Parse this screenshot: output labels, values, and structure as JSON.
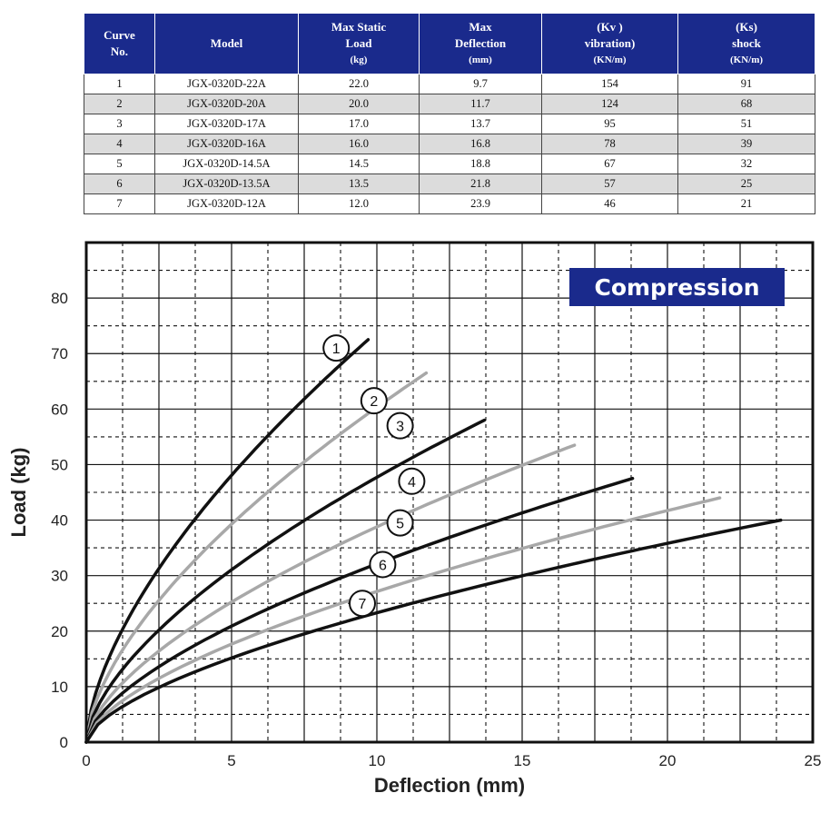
{
  "table": {
    "headers": [
      {
        "line1": "Curve",
        "line2": "No.",
        "unit": ""
      },
      {
        "line1": "Model",
        "line2": "",
        "unit": ""
      },
      {
        "line1": "Max Static",
        "line2": "Load",
        "unit": "(kg)"
      },
      {
        "line1": "Max",
        "line2": "Deflection",
        "unit": "(mm)"
      },
      {
        "line1": "(Kv )",
        "line2": "vibration)",
        "unit": "(KN/m)"
      },
      {
        "line1": "(Ks)",
        "line2": "shock",
        "unit": "(KN/m)"
      }
    ],
    "rows": [
      [
        "1",
        "JGX-0320D-22A",
        "22.0",
        "9.7",
        "154",
        "91"
      ],
      [
        "2",
        "JGX-0320D-20A",
        "20.0",
        "11.7",
        "124",
        "68"
      ],
      [
        "3",
        "JGX-0320D-17A",
        "17.0",
        "13.7",
        "95",
        "51"
      ],
      [
        "4",
        "JGX-0320D-16A",
        "16.0",
        "16.8",
        "78",
        "39"
      ],
      [
        "5",
        "JGX-0320D-14.5A",
        "14.5",
        "18.8",
        "67",
        "32"
      ],
      [
        "6",
        "JGX-0320D-13.5A",
        "13.5",
        "21.8",
        "57",
        "25"
      ],
      [
        "7",
        "JGX-0320D-12A",
        "12.0",
        "23.9",
        "46",
        "21"
      ]
    ]
  },
  "chart_data": {
    "type": "line",
    "badge": "Compression",
    "xlabel": "Deflection (mm)",
    "ylabel": "Load (kg)",
    "xlim": [
      0,
      25
    ],
    "ylim": [
      0,
      90
    ],
    "xticks": [
      0,
      5,
      10,
      15,
      20,
      25
    ],
    "yticks": [
      0,
      10,
      20,
      30,
      40,
      50,
      60,
      70,
      80
    ],
    "grid": true,
    "colors": {
      "dark": "#111111",
      "light": "#a8a8a8",
      "badge": "#1a2a8c"
    },
    "series": [
      {
        "name": "1",
        "color": "dark",
        "max_x": 9.7,
        "max_y": 72.5,
        "label_at": [
          8.6,
          71.0
        ]
      },
      {
        "name": "2",
        "color": "light",
        "max_x": 11.7,
        "max_y": 66.5,
        "label_at": [
          9.9,
          61.5
        ]
      },
      {
        "name": "3",
        "color": "dark",
        "max_x": 13.7,
        "max_y": 58.0,
        "label_at": [
          10.8,
          57.0
        ]
      },
      {
        "name": "4",
        "color": "light",
        "max_x": 16.8,
        "max_y": 53.5,
        "label_at": [
          11.2,
          47.0
        ]
      },
      {
        "name": "5",
        "color": "dark",
        "max_x": 18.8,
        "max_y": 47.5,
        "label_at": [
          10.8,
          39.5
        ]
      },
      {
        "name": "6",
        "color": "light",
        "max_x": 21.8,
        "max_y": 44.0,
        "label_at": [
          10.2,
          32.0
        ]
      },
      {
        "name": "7",
        "color": "dark",
        "max_x": 23.9,
        "max_y": 40.0,
        "label_at": [
          9.5,
          25.0
        ]
      }
    ]
  }
}
